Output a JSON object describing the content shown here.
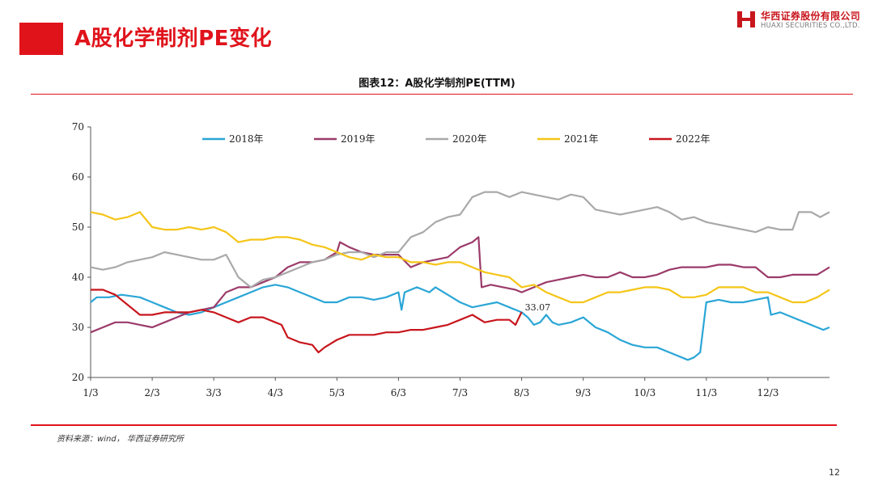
{
  "header": {
    "title": "A股化学制剂PE变化",
    "logo_cn": "华西证券股份有限公司",
    "logo_en": "HUAXI SECURITIES CO.,LTD."
  },
  "colors": {
    "accent": "#e0131b"
  },
  "footer": {
    "source": "资料来源：wind，  华西证券研究所",
    "page_number": "12"
  },
  "chart_data": {
    "type": "line",
    "title": "图表12：A股化学制剂PE(TTM)",
    "xlabel": "",
    "ylabel": "",
    "ylim": [
      20,
      70
    ],
    "yticks": [
      "20",
      "30",
      "40",
      "50",
      "60",
      "70"
    ],
    "xticks": [
      "1/3",
      "2/3",
      "3/3",
      "4/3",
      "5/3",
      "6/3",
      "7/3",
      "8/3",
      "9/3",
      "10/3",
      "11/3",
      "12/3"
    ],
    "x_unit": "month position (1 = Jan 3, 13 = end of Dec)",
    "xlim": [
      1,
      13
    ],
    "grid": false,
    "legend_position": "top",
    "series": [
      {
        "name": "2018年",
        "color": "#2aa6d6",
        "points": [
          [
            1.0,
            35
          ],
          [
            1.1,
            36
          ],
          [
            1.3,
            36
          ],
          [
            1.5,
            36.5
          ],
          [
            1.8,
            36
          ],
          [
            2.0,
            35
          ],
          [
            2.2,
            34
          ],
          [
            2.4,
            33
          ],
          [
            2.6,
            32.5
          ],
          [
            2.8,
            33
          ],
          [
            3.0,
            34
          ],
          [
            3.2,
            35
          ],
          [
            3.4,
            36
          ],
          [
            3.6,
            37
          ],
          [
            3.8,
            38
          ],
          [
            4.0,
            38.5
          ],
          [
            4.2,
            38
          ],
          [
            4.4,
            37
          ],
          [
            4.6,
            36
          ],
          [
            4.8,
            35
          ],
          [
            5.0,
            35
          ],
          [
            5.2,
            36
          ],
          [
            5.4,
            36
          ],
          [
            5.6,
            35.5
          ],
          [
            5.8,
            36
          ],
          [
            6.0,
            37
          ],
          [
            6.05,
            33.5
          ],
          [
            6.1,
            37
          ],
          [
            6.3,
            38
          ],
          [
            6.5,
            37
          ],
          [
            6.6,
            38
          ],
          [
            6.8,
            36.5
          ],
          [
            7.0,
            35
          ],
          [
            7.2,
            34
          ],
          [
            7.4,
            34.5
          ],
          [
            7.6,
            35
          ],
          [
            7.8,
            34
          ],
          [
            8.0,
            33
          ],
          [
            8.1,
            32
          ],
          [
            8.2,
            30.5
          ],
          [
            8.3,
            31
          ],
          [
            8.4,
            32.5
          ],
          [
            8.5,
            31
          ],
          [
            8.6,
            30.5
          ],
          [
            8.8,
            31
          ],
          [
            9.0,
            32
          ],
          [
            9.2,
            30
          ],
          [
            9.4,
            29
          ],
          [
            9.6,
            27.5
          ],
          [
            9.8,
            26.5
          ],
          [
            10.0,
            26
          ],
          [
            10.2,
            26
          ],
          [
            10.4,
            25
          ],
          [
            10.6,
            24
          ],
          [
            10.7,
            23.5
          ],
          [
            10.8,
            24
          ],
          [
            10.9,
            25
          ],
          [
            11.0,
            35
          ],
          [
            11.2,
            35.5
          ],
          [
            11.4,
            35
          ],
          [
            11.6,
            35
          ],
          [
            11.8,
            35.5
          ],
          [
            12.0,
            36
          ],
          [
            12.05,
            32.5
          ],
          [
            12.2,
            33
          ],
          [
            12.4,
            32
          ],
          [
            12.6,
            31
          ],
          [
            12.8,
            30
          ],
          [
            12.9,
            29.5
          ],
          [
            13.0,
            30
          ]
        ]
      },
      {
        "name": "2019年",
        "color": "#9b3b6a",
        "points": [
          [
            1.0,
            29
          ],
          [
            1.2,
            30
          ],
          [
            1.4,
            31
          ],
          [
            1.6,
            31
          ],
          [
            1.8,
            30.5
          ],
          [
            2.0,
            30
          ],
          [
            2.2,
            31
          ],
          [
            2.4,
            32
          ],
          [
            2.6,
            33
          ],
          [
            2.8,
            33.5
          ],
          [
            3.0,
            34
          ],
          [
            3.2,
            37
          ],
          [
            3.4,
            38
          ],
          [
            3.6,
            38
          ],
          [
            3.8,
            39
          ],
          [
            4.0,
            40
          ],
          [
            4.2,
            42
          ],
          [
            4.4,
            43
          ],
          [
            4.6,
            43
          ],
          [
            4.8,
            43.5
          ],
          [
            5.0,
            45
          ],
          [
            5.05,
            47
          ],
          [
            5.2,
            46
          ],
          [
            5.4,
            45
          ],
          [
            5.6,
            44.5
          ],
          [
            5.8,
            44.5
          ],
          [
            6.0,
            44.5
          ],
          [
            6.2,
            42
          ],
          [
            6.4,
            43
          ],
          [
            6.6,
            43.5
          ],
          [
            6.8,
            44
          ],
          [
            7.0,
            46
          ],
          [
            7.2,
            47
          ],
          [
            7.3,
            48
          ],
          [
            7.35,
            38
          ],
          [
            7.5,
            38.5
          ],
          [
            7.7,
            38
          ],
          [
            7.9,
            37.5
          ],
          [
            8.0,
            37
          ],
          [
            8.2,
            38
          ],
          [
            8.4,
            39
          ],
          [
            8.6,
            39.5
          ],
          [
            8.8,
            40
          ],
          [
            9.0,
            40.5
          ],
          [
            9.2,
            40
          ],
          [
            9.4,
            40
          ],
          [
            9.6,
            41
          ],
          [
            9.8,
            40
          ],
          [
            10.0,
            40
          ],
          [
            10.2,
            40.5
          ],
          [
            10.4,
            41.5
          ],
          [
            10.6,
            42
          ],
          [
            10.8,
            42
          ],
          [
            11.0,
            42
          ],
          [
            11.2,
            42.5
          ],
          [
            11.4,
            42.5
          ],
          [
            11.6,
            42
          ],
          [
            11.8,
            42
          ],
          [
            12.0,
            40
          ],
          [
            12.2,
            40
          ],
          [
            12.4,
            40.5
          ],
          [
            12.6,
            40.5
          ],
          [
            12.8,
            40.5
          ],
          [
            13.0,
            42
          ]
        ]
      },
      {
        "name": "2020年",
        "color": "#a9a9a9",
        "points": [
          [
            1.0,
            42
          ],
          [
            1.2,
            41.5
          ],
          [
            1.4,
            42
          ],
          [
            1.6,
            43
          ],
          [
            1.8,
            43.5
          ],
          [
            2.0,
            44
          ],
          [
            2.2,
            45
          ],
          [
            2.4,
            44.5
          ],
          [
            2.6,
            44
          ],
          [
            2.8,
            43.5
          ],
          [
            3.0,
            43.5
          ],
          [
            3.2,
            44.5
          ],
          [
            3.4,
            40
          ],
          [
            3.6,
            38
          ],
          [
            3.8,
            39.5
          ],
          [
            4.0,
            40
          ],
          [
            4.2,
            41
          ],
          [
            4.4,
            42
          ],
          [
            4.6,
            43
          ],
          [
            4.8,
            43.5
          ],
          [
            5.0,
            44.5
          ],
          [
            5.2,
            45
          ],
          [
            5.4,
            45
          ],
          [
            5.6,
            44
          ],
          [
            5.8,
            45
          ],
          [
            6.0,
            45
          ],
          [
            6.2,
            48
          ],
          [
            6.4,
            49
          ],
          [
            6.6,
            51
          ],
          [
            6.8,
            52
          ],
          [
            7.0,
            52.5
          ],
          [
            7.2,
            56
          ],
          [
            7.4,
            57
          ],
          [
            7.6,
            57
          ],
          [
            7.8,
            56
          ],
          [
            8.0,
            57
          ],
          [
            8.2,
            56.5
          ],
          [
            8.4,
            56
          ],
          [
            8.6,
            55.5
          ],
          [
            8.8,
            56.5
          ],
          [
            9.0,
            56
          ],
          [
            9.2,
            53.5
          ],
          [
            9.4,
            53
          ],
          [
            9.6,
            52.5
          ],
          [
            9.8,
            53
          ],
          [
            10.0,
            53.5
          ],
          [
            10.2,
            54
          ],
          [
            10.4,
            53
          ],
          [
            10.6,
            51.5
          ],
          [
            10.8,
            52
          ],
          [
            11.0,
            51
          ],
          [
            11.2,
            50.5
          ],
          [
            11.4,
            50
          ],
          [
            11.6,
            49.5
          ],
          [
            11.8,
            49
          ],
          [
            12.0,
            50
          ],
          [
            12.2,
            49.5
          ],
          [
            12.4,
            49.5
          ],
          [
            12.5,
            53
          ],
          [
            12.7,
            53
          ],
          [
            12.85,
            52
          ],
          [
            13.0,
            53
          ]
        ]
      },
      {
        "name": "2021年",
        "color": "#f5c518",
        "points": [
          [
            1.0,
            53
          ],
          [
            1.2,
            52.5
          ],
          [
            1.4,
            51.5
          ],
          [
            1.6,
            52
          ],
          [
            1.8,
            53
          ],
          [
            2.0,
            50
          ],
          [
            2.2,
            49.5
          ],
          [
            2.4,
            49.5
          ],
          [
            2.6,
            50
          ],
          [
            2.8,
            49.5
          ],
          [
            3.0,
            50
          ],
          [
            3.2,
            49
          ],
          [
            3.4,
            47
          ],
          [
            3.6,
            47.5
          ],
          [
            3.8,
            47.5
          ],
          [
            4.0,
            48
          ],
          [
            4.2,
            48
          ],
          [
            4.4,
            47.5
          ],
          [
            4.6,
            46.5
          ],
          [
            4.8,
            46
          ],
          [
            5.0,
            45
          ],
          [
            5.2,
            44
          ],
          [
            5.4,
            43.5
          ],
          [
            5.6,
            44.5
          ],
          [
            5.8,
            44
          ],
          [
            6.0,
            44
          ],
          [
            6.2,
            43
          ],
          [
            6.4,
            43
          ],
          [
            6.6,
            42.5
          ],
          [
            6.8,
            43
          ],
          [
            7.0,
            43
          ],
          [
            7.2,
            42
          ],
          [
            7.4,
            41
          ],
          [
            7.6,
            40.5
          ],
          [
            7.8,
            40
          ],
          [
            8.0,
            38
          ],
          [
            8.2,
            38.5
          ],
          [
            8.4,
            37
          ],
          [
            8.6,
            36
          ],
          [
            8.8,
            35
          ],
          [
            9.0,
            35
          ],
          [
            9.2,
            36
          ],
          [
            9.4,
            37
          ],
          [
            9.6,
            37
          ],
          [
            9.8,
            37.5
          ],
          [
            10.0,
            38
          ],
          [
            10.2,
            38
          ],
          [
            10.4,
            37.5
          ],
          [
            10.6,
            36
          ],
          [
            10.8,
            36
          ],
          [
            11.0,
            36.5
          ],
          [
            11.2,
            38
          ],
          [
            11.4,
            38
          ],
          [
            11.6,
            38
          ],
          [
            11.8,
            37
          ],
          [
            12.0,
            37
          ],
          [
            12.2,
            36
          ],
          [
            12.4,
            35
          ],
          [
            12.6,
            35
          ],
          [
            12.8,
            36
          ],
          [
            13.0,
            37.5
          ]
        ]
      },
      {
        "name": "2022年",
        "color": "#c8161d",
        "points": [
          [
            1.0,
            37.5
          ],
          [
            1.2,
            37.5
          ],
          [
            1.4,
            36.5
          ],
          [
            1.6,
            34.5
          ],
          [
            1.8,
            32.5
          ],
          [
            2.0,
            32.5
          ],
          [
            2.2,
            33
          ],
          [
            2.4,
            33
          ],
          [
            2.6,
            33
          ],
          [
            2.8,
            33.5
          ],
          [
            3.0,
            33
          ],
          [
            3.2,
            32
          ],
          [
            3.4,
            31
          ],
          [
            3.6,
            32
          ],
          [
            3.8,
            32
          ],
          [
            4.0,
            31
          ],
          [
            4.1,
            30.5
          ],
          [
            4.2,
            28
          ],
          [
            4.4,
            27
          ],
          [
            4.6,
            26.5
          ],
          [
            4.7,
            25
          ],
          [
            4.8,
            26
          ],
          [
            5.0,
            27.5
          ],
          [
            5.2,
            28.5
          ],
          [
            5.4,
            28.5
          ],
          [
            5.6,
            28.5
          ],
          [
            5.8,
            29
          ],
          [
            6.0,
            29
          ],
          [
            6.2,
            29.5
          ],
          [
            6.4,
            29.5
          ],
          [
            6.6,
            30
          ],
          [
            6.8,
            30.5
          ],
          [
            7.0,
            31.5
          ],
          [
            7.2,
            32.5
          ],
          [
            7.4,
            31
          ],
          [
            7.6,
            31.5
          ],
          [
            7.8,
            31.5
          ],
          [
            7.9,
            30.5
          ],
          [
            8.0,
            33.07
          ]
        ]
      }
    ],
    "annotations": [
      {
        "text": "33.07",
        "x": 8.0,
        "y": 33.07
      }
    ]
  }
}
